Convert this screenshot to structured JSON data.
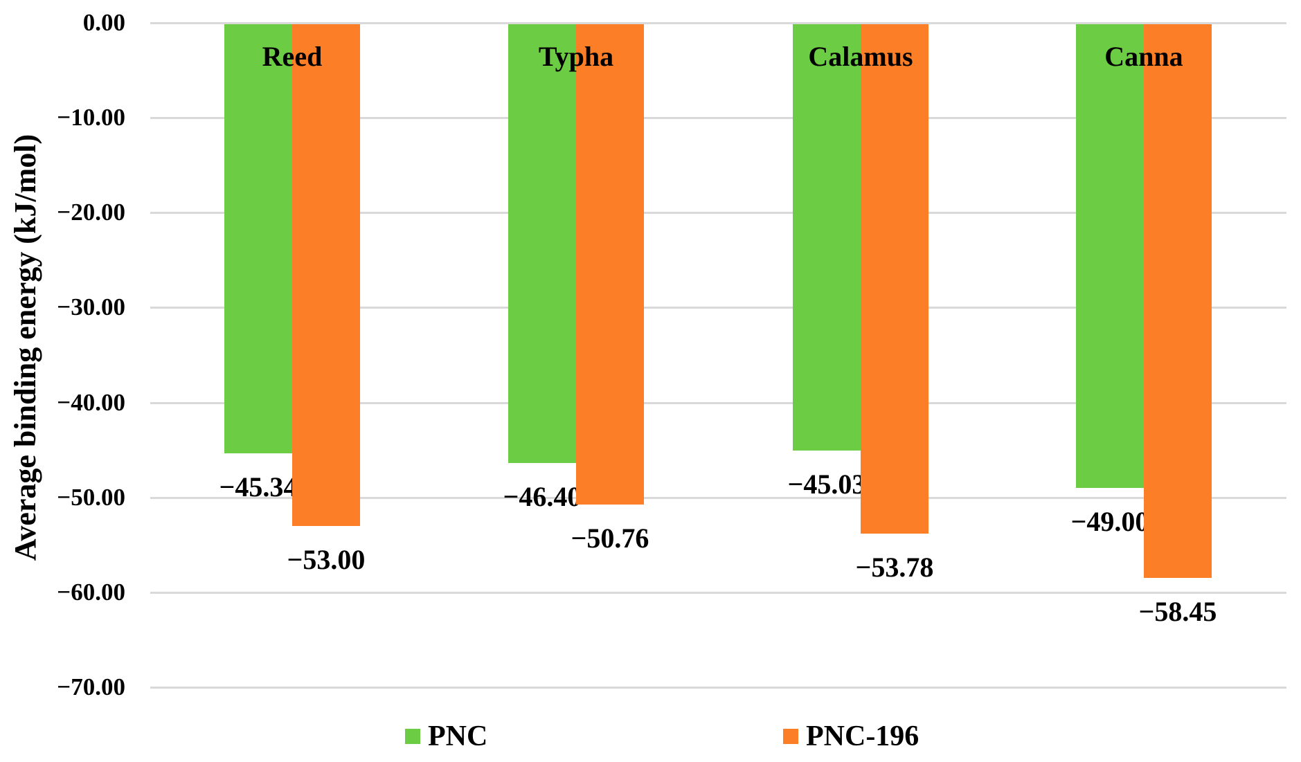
{
  "figure": {
    "background": "#FFFFFF"
  },
  "chart_data": {
    "type": "bar",
    "orientation": "vertical",
    "title": "",
    "categories": [
      "Reed",
      "Typha",
      "Calamus",
      "Canna"
    ],
    "series": [
      {
        "name": "PNC",
        "color": "#6CCD44",
        "values": [
          -45.34,
          -46.4,
          -45.03,
          -49.0
        ],
        "data_labels": [
          "−45.34",
          "−46.40",
          "−45.03",
          "−49.00"
        ]
      },
      {
        "name": "PNC-196",
        "color": "#FC7E26",
        "values": [
          -53.0,
          -50.76,
          -53.78,
          -58.45
        ],
        "data_labels": [
          "−53.00",
          "−50.76",
          "−53.78",
          "−58.45"
        ]
      }
    ],
    "xlabel": "",
    "ylabel": "Average binding energy (kJ/mol)",
    "ylim": [
      -70,
      0
    ],
    "yticks": [
      0,
      -10,
      -20,
      -30,
      -40,
      -50,
      -60,
      -70
    ],
    "ytick_labels": [
      "0.00",
      "−10.00",
      "−20.00",
      "−30.00",
      "−40.00",
      "−50.00",
      "−60.00",
      "−70.00"
    ],
    "grid": "horizontal",
    "gridline_color": "#D9D9D9",
    "text_color": "#000000",
    "legend": {
      "position": "bottom",
      "entries": [
        "PNC",
        "PNC-196"
      ]
    }
  }
}
